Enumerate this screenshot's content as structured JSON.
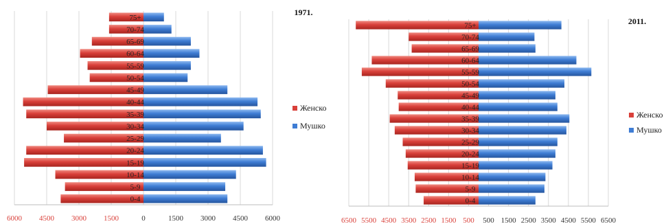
{
  "chart_data": [
    {
      "type": "bar",
      "orientation": "horizontal",
      "subtype": "population-pyramid",
      "title": "1971.",
      "categories": [
        "0-4",
        "5-9",
        "10-14",
        "15-19",
        "20-24",
        "25-29",
        "30-34",
        "35-39",
        "40-44",
        "45-49",
        "50-54",
        "55-59",
        "60-64",
        "65-69",
        "70-74",
        "75+"
      ],
      "series": [
        {
          "name": "Женско",
          "color": "#d9403a",
          "side": "left",
          "values": [
            3850,
            3650,
            4100,
            5550,
            5450,
            3700,
            4500,
            5450,
            5600,
            4450,
            2500,
            2600,
            2950,
            2400,
            1600,
            1600
          ]
        },
        {
          "name": "Мушко",
          "color": "#3f7dd4",
          "side": "right",
          "values": [
            3900,
            3800,
            4300,
            5700,
            5550,
            3600,
            4650,
            5450,
            5300,
            3900,
            2050,
            2200,
            2600,
            2200,
            1300,
            950
          ]
        }
      ],
      "xticks": [
        "6000",
        "4500",
        "3000",
        "1500",
        "0",
        "1500",
        "3000",
        "4500",
        "6000"
      ],
      "xlim": [
        -6000,
        6000
      ],
      "legend_position": "right"
    },
    {
      "type": "bar",
      "orientation": "horizontal",
      "subtype": "population-pyramid",
      "title": "2011.",
      "categories": [
        "0-4",
        "5-9",
        "10-14",
        "15-19",
        "20-24",
        "25-29",
        "30-34",
        "35-39",
        "40-44",
        "45-49",
        "50-54",
        "55-59",
        "60-64",
        "65-69",
        "70-74",
        "75+"
      ],
      "series": [
        {
          "name": "Женско",
          "color": "#d9403a",
          "side": "left",
          "values": [
            2750,
            3150,
            3200,
            3550,
            3650,
            3800,
            4200,
            4450,
            4000,
            4050,
            4650,
            5850,
            5350,
            3350,
            3500,
            6150
          ]
        },
        {
          "name": "Мушко",
          "color": "#3f7dd4",
          "side": "right",
          "values": [
            2850,
            3300,
            3350,
            3700,
            3850,
            3950,
            4400,
            4550,
            3950,
            3850,
            4300,
            5650,
            4900,
            2850,
            2800,
            4150
          ]
        }
      ],
      "xticks": [
        "6500",
        "5500",
        "4500",
        "3500",
        "2500",
        "1500",
        "500",
        "500",
        "1500",
        "2500",
        "3500",
        "4500",
        "5500",
        "6500"
      ],
      "xlim": [
        -6500,
        6500
      ],
      "legend_position": "right"
    }
  ],
  "legend": {
    "female": "Женско",
    "male": "Мушко"
  },
  "colors": {
    "female": "#d9403a",
    "male": "#3f7dd4",
    "tick_left": "#d9403a",
    "tick_right": "#333333"
  }
}
